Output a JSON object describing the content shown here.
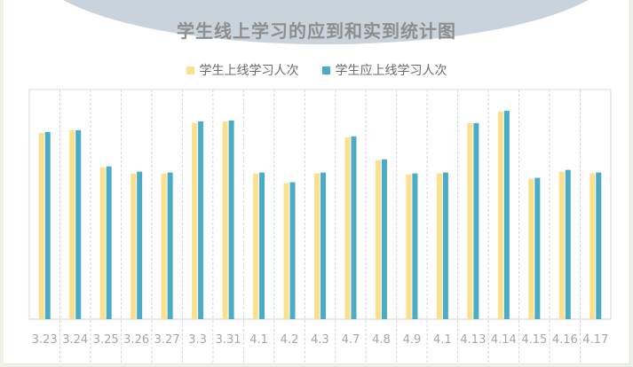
{
  "chart_data": {
    "type": "bar",
    "title": "学生线上学习的应到和实到统计图",
    "categories": [
      "3.23",
      "3.24",
      "3.25",
      "3.26",
      "3.27",
      "3.3",
      "3.31",
      "4.1",
      "4.2",
      "4.3",
      "4.7",
      "4.8",
      "4.9",
      "4.1",
      "4.13",
      "4.14",
      "4.15",
      "4.16",
      "4.17"
    ],
    "series": [
      {
        "name": "学生上线学习人次",
        "color": "#fbe08e",
        "values": [
          211,
          214,
          172,
          165,
          165,
          222,
          224,
          165,
          154,
          165,
          206,
          180,
          164,
          165,
          222,
          235,
          159,
          167,
          165
        ]
      },
      {
        "name": "学生应上线学习人次",
        "color": "#4bacc6",
        "values": [
          212,
          214,
          173,
          167,
          166,
          224,
          225,
          166,
          155,
          166,
          207,
          181,
          165,
          166,
          222,
          236,
          160,
          169,
          166
        ]
      }
    ],
    "ylim": [
      0,
      260
    ],
    "grid": {
      "vertical_dashed": true,
      "horizontal": false
    },
    "legend_position": "top-center",
    "show_y_axis": false
  }
}
